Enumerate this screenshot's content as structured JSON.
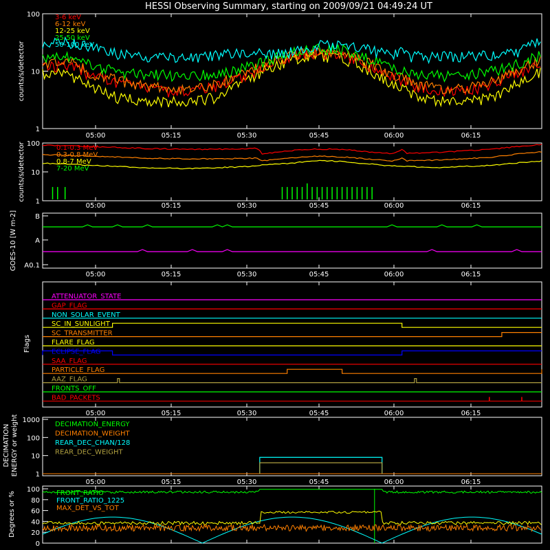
{
  "title": "HESSI Observing Summary, starting on 2009/09/21 04:49:24 UT",
  "time_ticks": [
    "05:00",
    "05:15",
    "05:30",
    "05:45",
    "06:00",
    "06:15"
  ],
  "colors": {
    "background": "#000000",
    "axes": "#ffffff",
    "red": "#ff0000",
    "orange": "#ff8000",
    "yellow": "#ffff00",
    "green": "#00ff00",
    "cyan": "#00ffff",
    "magenta": "#ff00ff",
    "blue": "#0000ff",
    "olive": "#b0a040"
  },
  "chart_data": [
    {
      "type": "line",
      "panel": "lo-energy",
      "ylabel": "counts/s/detector",
      "yscale": "log",
      "ylim": [
        1,
        100
      ],
      "yticks": [
        "1",
        "10",
        "100"
      ],
      "xlim": [
        0,
        100
      ],
      "legend": [
        {
          "name": "3-6 keV",
          "color": "#ff0000"
        },
        {
          "name": "6-12 keV",
          "color": "#ff8000"
        },
        {
          "name": "12-25 keV",
          "color": "#ffff00"
        },
        {
          "name": "25-50 keV",
          "color": "#00ff00"
        },
        {
          "name": "50-100 keV",
          "color": "#00ffff"
        }
      ],
      "series": [
        {
          "color": "#00ffff",
          "x": [
            0,
            5,
            10,
            15,
            20,
            25,
            30,
            35,
            40,
            43,
            44,
            50,
            55,
            60,
            65,
            70,
            72,
            73,
            80,
            85,
            90,
            95,
            100
          ],
          "y": [
            30,
            33,
            25,
            20,
            18,
            18,
            18,
            19,
            22,
            24,
            18,
            22,
            28,
            28,
            24,
            19,
            24,
            18,
            18,
            18,
            19,
            22,
            33
          ]
        },
        {
          "color": "#00ff00",
          "x": [
            0,
            5,
            10,
            15,
            20,
            25,
            30,
            35,
            40,
            45,
            50,
            55,
            60,
            65,
            70,
            75,
            80,
            85,
            90,
            95,
            100
          ],
          "y": [
            17,
            19,
            12,
            10,
            9,
            8.5,
            8.5,
            9,
            11,
            15,
            22,
            25,
            24,
            17,
            11,
            9,
            8.5,
            8.5,
            10,
            13,
            20
          ]
        },
        {
          "color": "#ff8000",
          "x": [
            0,
            5,
            10,
            15,
            20,
            25,
            30,
            35,
            40,
            45,
            50,
            55,
            60,
            65,
            70,
            75,
            80,
            85,
            90,
            95,
            100
          ],
          "y": [
            14,
            15,
            9,
            7,
            5.5,
            5,
            5,
            6,
            9,
            13,
            19,
            22,
            20,
            14,
            8.5,
            6,
            5,
            5,
            6.5,
            10,
            16
          ]
        },
        {
          "color": "#ff0000",
          "x": [
            0,
            5,
            10,
            15,
            20,
            25,
            30,
            35,
            40,
            45,
            50,
            55,
            60,
            65,
            70,
            75,
            80,
            85,
            90,
            95,
            100
          ],
          "y": [
            12,
            13,
            8,
            6,
            5,
            4.5,
            4.5,
            5.5,
            8,
            12,
            18,
            21,
            19,
            13,
            8,
            5.5,
            4.5,
            4.5,
            6,
            9,
            14
          ]
        },
        {
          "color": "#ffff00",
          "x": [
            0,
            5,
            10,
            15,
            20,
            25,
            30,
            35,
            40,
            45,
            50,
            55,
            60,
            65,
            70,
            75,
            80,
            85,
            90,
            95,
            100
          ],
          "y": [
            9,
            9,
            5,
            3.5,
            3,
            3,
            3,
            3.5,
            6,
            11,
            16,
            19,
            17,
            11,
            6,
            3.5,
            3,
            3,
            3.5,
            6,
            10
          ]
        }
      ]
    },
    {
      "type": "line",
      "panel": "hi-energy",
      "ylabel": "counts/s/detector",
      "yscale": "log",
      "ylim": [
        1,
        100
      ],
      "yticks": [
        "1",
        "10",
        "100"
      ],
      "xlim": [
        0,
        100
      ],
      "legend": [
        {
          "name": "0.1-0.3 MeV",
          "color": "#ff0000"
        },
        {
          "name": "0.3-0.8 MeV",
          "color": "#ff8000"
        },
        {
          "name": "0.8-7 MeV",
          "color": "#ffff00"
        },
        {
          "name": "7-20 MeV",
          "color": "#00ff00"
        }
      ],
      "series": [
        {
          "color": "#ff0000",
          "x": [
            0,
            10,
            20,
            30,
            40,
            43,
            44,
            50,
            55,
            60,
            65,
            70,
            72,
            73,
            80,
            90,
            100
          ],
          "y": [
            85,
            75,
            65,
            60,
            62,
            65,
            42,
            55,
            62,
            60,
            50,
            42,
            58,
            44,
            48,
            60,
            90
          ]
        },
        {
          "color": "#ff8000",
          "x": [
            0,
            10,
            20,
            30,
            40,
            43,
            44,
            50,
            55,
            60,
            65,
            70,
            72,
            73,
            80,
            90,
            100
          ],
          "y": [
            40,
            35,
            30,
            28,
            29,
            30,
            24,
            30,
            35,
            33,
            28,
            24,
            30,
            24,
            26,
            32,
            50
          ]
        },
        {
          "color": "#ffff00",
          "x": [
            0,
            10,
            20,
            30,
            40,
            50,
            55,
            60,
            65,
            70,
            80,
            90,
            100
          ],
          "y": [
            20,
            17,
            14,
            13,
            15,
            20,
            25,
            23,
            19,
            16,
            14,
            17,
            24
          ]
        }
      ],
      "spikes": {
        "color": "#00ff00",
        "x": [
          2,
          3,
          4.5,
          48,
          49,
          50,
          51,
          52,
          53,
          54,
          55,
          56,
          57,
          58,
          59,
          60,
          61,
          62,
          63,
          64,
          65,
          66
        ],
        "y": [
          3,
          3,
          3,
          3,
          3,
          3,
          3,
          3,
          4,
          3,
          3,
          3,
          3,
          3,
          3,
          3,
          3,
          3,
          3,
          3,
          3,
          3
        ]
      }
    },
    {
      "type": "line",
      "panel": "goes",
      "ylabel": "GOES-10 [W m-2]",
      "yticks": [
        "A0.1",
        "A",
        "B"
      ],
      "series": [
        {
          "name": "goes-long",
          "color": "#00ff00",
          "level": 0.75
        },
        {
          "name": "goes-short",
          "color": "#ff00ff",
          "level": 0.3
        }
      ]
    },
    {
      "type": "line",
      "panel": "flags",
      "ylabel": "Flags",
      "flags": [
        {
          "name": "ATTENUATOR_STATE",
          "color": "#ff00ff",
          "transitions": []
        },
        {
          "name": "GAP_FLAG",
          "color": "#ff0000",
          "transitions": []
        },
        {
          "name": "NON_SOLAR_EVENT",
          "color": "#00ffff",
          "transitions": []
        },
        {
          "name": "SC_IN_SUNLIGHT",
          "color": "#ffff00",
          "transitions": [
            [
              14,
              1
            ],
            [
              72,
              0
            ]
          ]
        },
        {
          "name": "SC_TRANSMITTER",
          "color": "#ff8000",
          "transitions": [
            [
              92,
              1
            ]
          ]
        },
        {
          "name": "FLARE_FLAG",
          "color": "#ffff00",
          "transitions": []
        },
        {
          "name": "ECLIPSE_FLAG",
          "color": "#0000ff",
          "transitions": [
            [
              0,
              1
            ],
            [
              14,
              0
            ],
            [
              72,
              1
            ]
          ]
        },
        {
          "name": "SAA_FLAG",
          "color": "#ff0000",
          "transitions": []
        },
        {
          "name": "PARTICLE_FLAG",
          "color": "#ff8000",
          "transitions": [
            [
              49,
              1
            ],
            [
              60,
              0
            ],
            [
              100,
              1
            ]
          ]
        },
        {
          "name": "AAZ_FLAG",
          "color": "#b0a040",
          "transitions": [
            [
              15,
              1
            ],
            [
              15.4,
              0
            ],
            [
              74.5,
              1
            ],
            [
              74.9,
              0
            ]
          ]
        },
        {
          "name": "FRONTS_OFF",
          "color": "#00ff00",
          "transitions": []
        },
        {
          "name": "BAD_PACKETS",
          "color": "#ff0000",
          "spikes": [
            89.5,
            96
          ]
        }
      ]
    },
    {
      "type": "line",
      "panel": "decimation",
      "ylabel": "DECIMATION ENERGY or weight",
      "yscale": "log",
      "ylim": [
        1,
        1000
      ],
      "yticks": [
        "1",
        "10",
        "100",
        "1000"
      ],
      "legend": [
        {
          "name": "DECIMATION_ENERGY",
          "color": "#00ff00"
        },
        {
          "name": "DECIMATION_WEIGHT",
          "color": "#ff8000"
        },
        {
          "name": "REAR_DEC_CHAN/128",
          "color": "#00ffff"
        },
        {
          "name": "REAR_DEC_WEIGHT",
          "color": "#b0a040"
        }
      ],
      "boxes": [
        {
          "color": "#00ffff",
          "x0": 43.5,
          "x1": 68,
          "y": 8
        },
        {
          "color": "#b0a040",
          "x0": 43.5,
          "x1": 68,
          "y": 4
        }
      ]
    },
    {
      "type": "line",
      "panel": "ratios",
      "ylabel": "Degrees or %",
      "ylim": [
        0,
        100
      ],
      "yticks": [
        "0",
        "20",
        "40",
        "60",
        "80",
        "100"
      ],
      "legend": [
        {
          "name": "FRONT_RATIO",
          "color": "#00ff00"
        },
        {
          "name": "FRONT_RATIO_1225",
          "color": "#00ffff"
        },
        {
          "name": "MAX_DET_VS_TOT",
          "color": "#ff8000"
        }
      ]
    }
  ]
}
